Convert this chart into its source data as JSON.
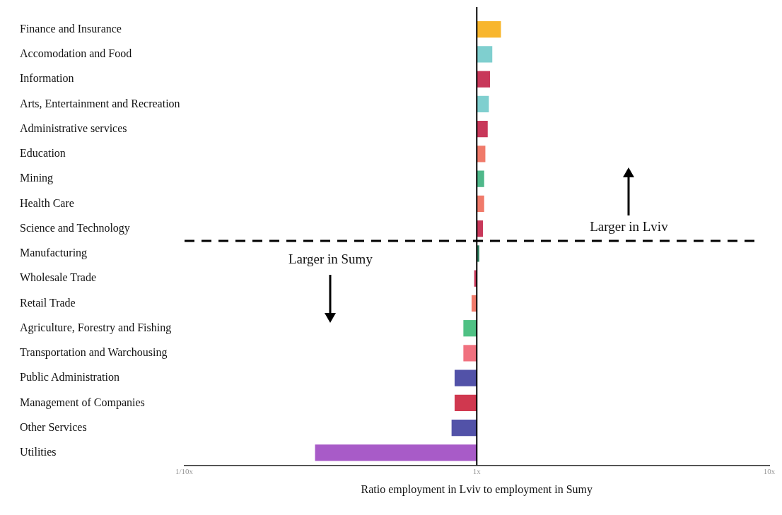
{
  "chart_data": {
    "type": "bar",
    "orientation": "horizontal",
    "log": "x",
    "grid": false,
    "legend": false,
    "xlabel": "Ratio employment in Lviv to employment in Sumy",
    "categories": [
      "Finance and Insurance",
      "Accomodation and Food",
      "Information",
      "Arts, Entertainment and Recreation",
      "Administrative services",
      "Education",
      "Mining",
      "Health Care",
      "Science and Technology",
      "Manufacturing",
      "Wholesale Trade",
      "Retail Trade",
      "Agriculture, Forestry and Fishing",
      "Transportation and Warchousing",
      "Public Administration",
      "Management of Companies",
      "Other Services",
      "Utilities"
    ],
    "base": [
      1,
      1,
      1,
      1,
      1,
      1,
      1,
      1,
      1,
      1,
      1,
      1,
      1,
      1,
      1,
      1,
      1,
      1
    ],
    "values": [
      0.21,
      0.13,
      0.11,
      0.1,
      0.09,
      0.07,
      0.06,
      0.06,
      0.05,
      0.02,
      -0.02,
      -0.04,
      -0.1,
      -0.1,
      -0.16,
      -0.16,
      -0.18,
      -0.72
    ],
    "colors": [
      "#f8b62d",
      "#7fcfcf",
      "#c8385a",
      "#7fcfcf",
      "#c8385a",
      "#f07a6a",
      "#4fb88a",
      "#f07a6a",
      "#c8385a",
      "#2e7d5e",
      "#c8385a",
      "#f07a6a",
      "#4fc184",
      "#f0717f",
      "#5252a8",
      "#d0384f",
      "#5252a8",
      "#a85bc8"
    ],
    "xlim": [
      0.1,
      10
    ],
    "xticks": [
      {
        "value": 0.1,
        "label": "1/10x"
      },
      {
        "value": 1,
        "label": "1x"
      },
      {
        "value": 10,
        "label": "10x"
      }
    ],
    "ref_lines": [
      {
        "axis": "x",
        "value": 1,
        "color": "#000000"
      }
    ],
    "annotations": [
      "Larger in Lviv",
      "Larger in Sumy"
    ]
  }
}
